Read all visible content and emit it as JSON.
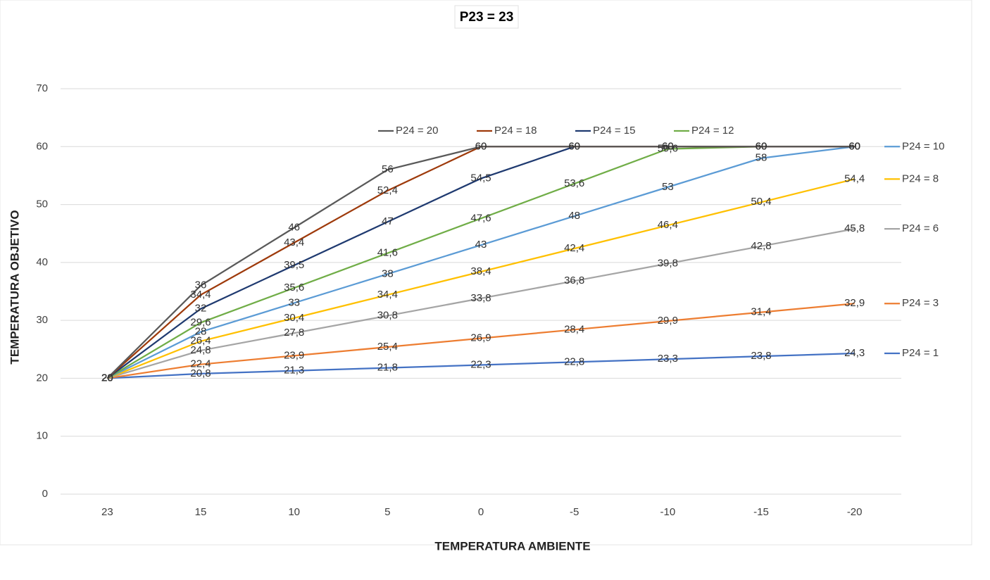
{
  "chart_data": {
    "type": "line",
    "title": "P23 = 23",
    "x_label": "TEMPERATURA AMBIENTE",
    "y_label": "TEMPERATURA OBJETIVO",
    "categories": [
      "23",
      "15",
      "10",
      "5",
      "0",
      "-5",
      "-10",
      "-15",
      "-20"
    ],
    "ylim": [
      0,
      70
    ],
    "yticks": [
      0,
      10,
      20,
      30,
      40,
      50,
      60,
      70
    ],
    "grid": true,
    "series": [
      {
        "name": "P24 = 20",
        "color": "#595959",
        "values": [
          20,
          36,
          46,
          56,
          60,
          60,
          60,
          60,
          60
        ],
        "value_labels": [
          "20",
          "36",
          "46",
          "56",
          "60",
          "60",
          "60",
          "60",
          "60"
        ]
      },
      {
        "name": "P24 = 18",
        "color": "#9e3a0b",
        "values": [
          20,
          34.4,
          43.4,
          52.4,
          60,
          60,
          60,
          60,
          60
        ],
        "value_labels": [
          "20",
          "34,4",
          "43,4",
          "52,4",
          "60",
          "60",
          "60",
          "60",
          "60"
        ]
      },
      {
        "name": "P24 = 15",
        "color": "#1f3a70",
        "values": [
          20,
          32,
          39.5,
          47,
          54.5,
          60,
          60,
          60,
          60
        ],
        "value_labels": [
          "20",
          "32",
          "39,5",
          "47",
          "54,5",
          "60",
          "60",
          "60",
          "60"
        ]
      },
      {
        "name": "P24 = 12",
        "color": "#70ad47",
        "values": [
          20,
          29.6,
          35.6,
          41.6,
          47.6,
          53.6,
          59.6,
          60,
          60
        ],
        "value_labels": [
          "20",
          "29,6",
          "35,6",
          "41,6",
          "47,6",
          "53,6",
          "59,6",
          "60",
          "60"
        ]
      },
      {
        "name": "P24 = 10",
        "color": "#5b9bd5",
        "values": [
          20,
          28,
          33,
          38,
          43,
          48,
          53,
          58,
          60
        ],
        "value_labels": [
          "20",
          "28",
          "33",
          "38",
          "43",
          "48",
          "53",
          "58",
          "60"
        ]
      },
      {
        "name": "P24 = 8",
        "color": "#ffc000",
        "values": [
          20,
          26.4,
          30.4,
          34.4,
          38.4,
          42.4,
          46.4,
          50.4,
          54.4
        ],
        "value_labels": [
          "20",
          "26,4",
          "30,4",
          "34,4",
          "38,4",
          "42,4",
          "46,4",
          "50,4",
          "54,4"
        ]
      },
      {
        "name": "P24 = 6",
        "color": "#a5a5a5",
        "values": [
          20,
          24.8,
          27.8,
          30.8,
          33.8,
          36.8,
          39.8,
          42.8,
          45.8
        ],
        "value_labels": [
          "20",
          "24,8",
          "27,8",
          "30,8",
          "33,8",
          "36,8",
          "39,8",
          "42,8",
          "45,8"
        ]
      },
      {
        "name": "P24 = 3",
        "color": "#ed7d31",
        "values": [
          20,
          22.4,
          23.9,
          25.4,
          26.9,
          28.4,
          29.9,
          31.4,
          32.9
        ],
        "value_labels": [
          "20",
          "22,4",
          "23,9",
          "25,4",
          "26,9",
          "28,4",
          "29,9",
          "31,4",
          "32,9"
        ]
      },
      {
        "name": "P24 = 1",
        "color": "#4472c4",
        "values": [
          20,
          20.8,
          21.3,
          21.8,
          22.3,
          22.8,
          23.3,
          23.8,
          24.3
        ],
        "value_labels": [
          "20",
          "20,8",
          "21,3",
          "21,8",
          "22,3",
          "22,8",
          "23,3",
          "23,8",
          "24,3"
        ]
      }
    ]
  }
}
